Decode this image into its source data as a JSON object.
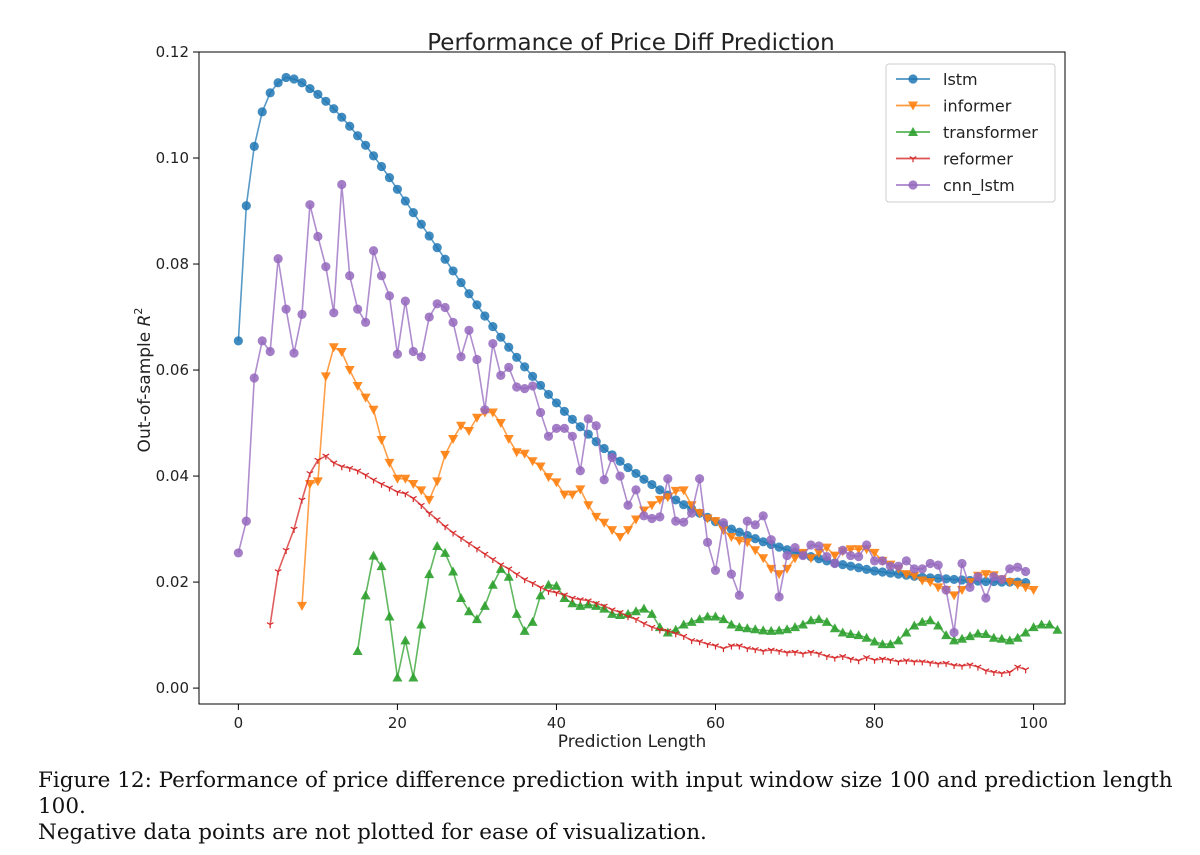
{
  "chart_data": {
    "type": "line",
    "title": "Performance of Price Diff Prediction",
    "xlabel": "Prediction Length",
    "ylabel_main": "Out-of-sample ",
    "ylabel_sym": "R",
    "ylabel_sup": "2",
    "xlim": [
      -4.95,
      103.95
    ],
    "ylim": [
      -0.003,
      0.12
    ],
    "xticks": [
      0,
      20,
      40,
      60,
      80,
      100
    ],
    "yticks": [
      0.0,
      0.02,
      0.04,
      0.06,
      0.08,
      0.1,
      0.12
    ],
    "ytick_labels": [
      "0.00",
      "0.02",
      "0.04",
      "0.06",
      "0.08",
      "0.10",
      "0.12"
    ],
    "grid": false,
    "legend_position": "top-right",
    "series": [
      {
        "name": "lstm",
        "color": "#1f77b4",
        "marker": "circle",
        "x_start": 0,
        "values": [
          0.0655,
          0.091,
          0.1022,
          0.1087,
          0.1123,
          0.1142,
          0.1152,
          0.1149,
          0.1142,
          0.1131,
          0.112,
          0.1107,
          0.1093,
          0.1077,
          0.106,
          0.1042,
          0.1024,
          0.1004,
          0.0984,
          0.0963,
          0.0941,
          0.0919,
          0.0897,
          0.0875,
          0.0853,
          0.0831,
          0.0809,
          0.0787,
          0.0765,
          0.0744,
          0.0723,
          0.0702,
          0.0682,
          0.0662,
          0.0643,
          0.0624,
          0.0606,
          0.0588,
          0.0571,
          0.0554,
          0.0538,
          0.0522,
          0.0507,
          0.0493,
          0.0479,
          0.0465,
          0.0452,
          0.044,
          0.0428,
          0.0416,
          0.0405,
          0.0394,
          0.0384,
          0.0374,
          0.0364,
          0.0355,
          0.0346,
          0.0338,
          0.033,
          0.0322,
          0.0314,
          0.0307,
          0.03,
          0.0294,
          0.0288,
          0.0282,
          0.0276,
          0.0271,
          0.0266,
          0.0261,
          0.0256,
          0.0252,
          0.0248,
          0.0244,
          0.024,
          0.0236,
          0.0233,
          0.023,
          0.0227,
          0.0224,
          0.0221,
          0.0219,
          0.0217,
          0.0215,
          0.0213,
          0.0211,
          0.0209,
          0.0208,
          0.0207,
          0.0206,
          0.0205,
          0.0204,
          0.0203,
          0.0202,
          0.0201,
          0.0201,
          0.02,
          0.02,
          0.02,
          0.0199
        ]
      },
      {
        "name": "informer",
        "color": "#ff7f0e",
        "marker": "triangle-down",
        "x_start": 8,
        "values": [
          0.0155,
          0.0385,
          0.039,
          0.0588,
          0.0643,
          0.0634,
          0.06,
          0.057,
          0.0548,
          0.0525,
          0.0468,
          0.0425,
          0.0395,
          0.0395,
          0.0385,
          0.0373,
          0.0355,
          0.039,
          0.044,
          0.047,
          0.0495,
          0.0485,
          0.051,
          0.052,
          0.052,
          0.05,
          0.047,
          0.0445,
          0.0442,
          0.0428,
          0.0418,
          0.0398,
          0.0388,
          0.0365,
          0.0365,
          0.0375,
          0.0345,
          0.0323,
          0.0312,
          0.0298,
          0.0285,
          0.0298,
          0.0318,
          0.0335,
          0.0345,
          0.0355,
          0.036,
          0.0372,
          0.0373,
          0.0345,
          0.033,
          0.032,
          0.0315,
          0.0298,
          0.0285,
          0.0278,
          0.0275,
          0.026,
          0.0245,
          0.0225,
          0.0215,
          0.0225,
          0.0245,
          0.0255,
          0.0245,
          0.0255,
          0.0265,
          0.025,
          0.0258,
          0.0262,
          0.0262,
          0.0262,
          0.0255,
          0.024,
          0.0233,
          0.0225,
          0.0215,
          0.0212,
          0.0203,
          0.02,
          0.019,
          0.0185,
          0.0175,
          0.0185,
          0.02,
          0.0212,
          0.0215,
          0.0213,
          0.0205,
          0.02,
          0.0195,
          0.019,
          0.0185
        ]
      },
      {
        "name": "transformer",
        "color": "#2ca02c",
        "marker": "triangle-up",
        "x_start": 15,
        "values": [
          0.007,
          0.0175,
          0.025,
          0.023,
          0.0135,
          0.002,
          0.009,
          0.002,
          0.012,
          0.0215,
          0.0268,
          0.0255,
          0.022,
          0.017,
          0.0145,
          0.013,
          0.0155,
          0.0195,
          0.0225,
          0.021,
          0.014,
          0.0108,
          0.0125,
          0.0175,
          0.0195,
          0.0193,
          0.017,
          0.016,
          0.0155,
          0.0158,
          0.0155,
          0.015,
          0.014,
          0.0138,
          0.014,
          0.0145,
          0.015,
          0.014,
          0.0115,
          0.0105,
          0.011,
          0.012,
          0.0125,
          0.013,
          0.0135,
          0.0135,
          0.013,
          0.012,
          0.0115,
          0.0113,
          0.0111,
          0.0109,
          0.0108,
          0.0109,
          0.0111,
          0.0115,
          0.012,
          0.0128,
          0.013,
          0.0125,
          0.0113,
          0.0105,
          0.0102,
          0.01,
          0.0095,
          0.0088,
          0.0083,
          0.0083,
          0.009,
          0.0105,
          0.0118,
          0.0125,
          0.0128,
          0.0118,
          0.01,
          0.009,
          0.0093,
          0.0098,
          0.0103,
          0.0102,
          0.0095,
          0.0093,
          0.009,
          0.0095,
          0.0105,
          0.0115,
          0.012,
          0.012,
          0.011
        ]
      },
      {
        "name": "reformer",
        "color": "#d62728",
        "marker": "tri-down",
        "x_start": 4,
        "values": [
          0.012,
          0.022,
          0.026,
          0.03,
          0.0355,
          0.0405,
          0.043,
          0.0438,
          0.0425,
          0.0418,
          0.0415,
          0.041,
          0.0402,
          0.0393,
          0.0385,
          0.0378,
          0.037,
          0.0367,
          0.0358,
          0.0345,
          0.033,
          0.0318,
          0.0305,
          0.0293,
          0.0283,
          0.0273,
          0.0263,
          0.0253,
          0.0243,
          0.0233,
          0.0225,
          0.0215,
          0.0205,
          0.0198,
          0.019,
          0.0183,
          0.018,
          0.0176,
          0.017,
          0.0167,
          0.0165,
          0.016,
          0.0155,
          0.0148,
          0.0143,
          0.0135,
          0.013,
          0.0122,
          0.0115,
          0.011,
          0.0108,
          0.0103,
          0.0098,
          0.009,
          0.0088,
          0.0083,
          0.008,
          0.0075,
          0.008,
          0.008,
          0.0075,
          0.0073,
          0.007,
          0.0072,
          0.007,
          0.0067,
          0.0068,
          0.0065,
          0.0068,
          0.0065,
          0.006,
          0.0057,
          0.006,
          0.0055,
          0.0052,
          0.0058,
          0.0053,
          0.0055,
          0.0053,
          0.005,
          0.0052,
          0.005,
          0.005,
          0.0048,
          0.0046,
          0.0047,
          0.0043,
          0.0042,
          0.0044,
          0.004,
          0.0033,
          0.003,
          0.0028,
          0.003,
          0.004,
          0.0035
        ]
      },
      {
        "name": "cnn_lstm",
        "color": "#9467bd",
        "marker": "circle",
        "x_start": 0,
        "values": [
          0.0255,
          0.0315,
          0.0585,
          0.0655,
          0.0635,
          0.081,
          0.0715,
          0.0632,
          0.0705,
          0.0912,
          0.0852,
          0.0795,
          0.0708,
          0.095,
          0.0778,
          0.0715,
          0.069,
          0.0825,
          0.0778,
          0.074,
          0.063,
          0.073,
          0.0635,
          0.0625,
          0.07,
          0.0725,
          0.0718,
          0.069,
          0.0625,
          0.0675,
          0.062,
          0.0525,
          0.065,
          0.059,
          0.0605,
          0.0568,
          0.0565,
          0.057,
          0.052,
          0.0475,
          0.049,
          0.049,
          0.0475,
          0.041,
          0.0508,
          0.0495,
          0.0393,
          0.0435,
          0.04,
          0.0345,
          0.0374,
          0.0325,
          0.032,
          0.0323,
          0.0395,
          0.0315,
          0.0313,
          0.033,
          0.0395,
          0.0275,
          0.0222,
          0.0312,
          0.0215,
          0.0175,
          0.0315,
          0.0308,
          0.0325,
          0.028,
          0.0172,
          0.025,
          0.0265,
          0.025,
          0.027,
          0.0268,
          0.0248,
          0.0235,
          0.026,
          0.025,
          0.0248,
          0.027,
          0.024,
          0.024,
          0.023,
          0.023,
          0.024,
          0.0225,
          0.0225,
          0.0235,
          0.0232,
          0.0185,
          0.0105,
          0.0235,
          0.019,
          0.021,
          0.017,
          0.021,
          0.0205,
          0.0225,
          0.0228,
          0.022
        ]
      }
    ]
  },
  "caption": {
    "line1": "Figure 12: Performance of price difference prediction with input window size 100 and prediction length 100.",
    "line2": "Negative data points are not plotted for ease of visualization."
  }
}
